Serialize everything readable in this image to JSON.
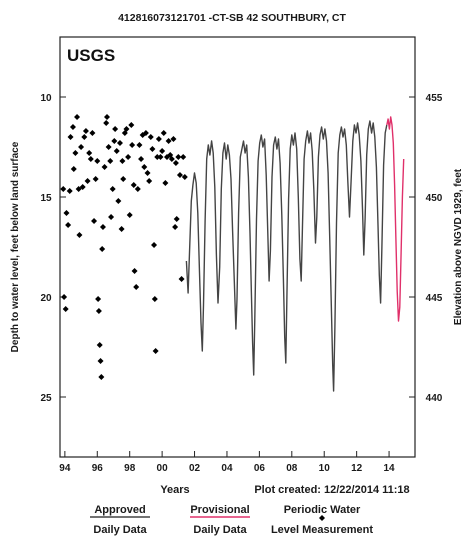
{
  "chart_data": {
    "type": "line",
    "title": "412816073121701 -CT-SB 42 SOUTHBURY, CT",
    "agency_label": "USGS",
    "xlabel": "Years",
    "ylabel_left": "Depth to water level, feet below land surface",
    "ylabel_right": "Elevation above NGVD 1929, feet",
    "x_ticks": [
      "94",
      "96",
      "98",
      "00",
      "02",
      "04",
      "06",
      "08",
      "10",
      "12",
      "14"
    ],
    "x_range": [
      1993.7,
      2015.6
    ],
    "ylim_left": [
      28,
      7
    ],
    "y_ticks_left": [
      10,
      15,
      20,
      25
    ],
    "y_ticks_right": [
      455,
      450,
      445,
      440
    ],
    "right_axis_offset": 465,
    "grid": false,
    "legend_position": "bottom",
    "plot_note": "Plot created: 12/22/2014 11:18",
    "legend": [
      {
        "line1": "Approved",
        "line2": "Daily Data",
        "color": "#444444",
        "style": "line"
      },
      {
        "line1": "Provisional",
        "line2": "Daily Data",
        "color": "#e0306a",
        "style": "line"
      },
      {
        "line1": "Periodic Water",
        "line2": "Level Measurement",
        "color": "#000000",
        "style": "point"
      }
    ],
    "colors": {
      "approved": "#444444",
      "provisional": "#e0306a",
      "periodic": "#000000"
    },
    "periodic_measurements": [
      {
        "x": 1993.9,
        "y": 14.6
      },
      {
        "x": 1993.95,
        "y": 20.0
      },
      {
        "x": 1994.05,
        "y": 20.6
      },
      {
        "x": 1994.1,
        "y": 15.8
      },
      {
        "x": 1994.2,
        "y": 16.4
      },
      {
        "x": 1994.3,
        "y": 14.7
      },
      {
        "x": 1994.35,
        "y": 12.0
      },
      {
        "x": 1994.5,
        "y": 11.5
      },
      {
        "x": 1994.55,
        "y": 13.6
      },
      {
        "x": 1994.65,
        "y": 12.8
      },
      {
        "x": 1994.75,
        "y": 11.0
      },
      {
        "x": 1994.85,
        "y": 14.6
      },
      {
        "x": 1994.9,
        "y": 16.9
      },
      {
        "x": 1995.0,
        "y": 12.5
      },
      {
        "x": 1995.1,
        "y": 14.5
      },
      {
        "x": 1995.2,
        "y": 12.0
      },
      {
        "x": 1995.3,
        "y": 11.7
      },
      {
        "x": 1995.4,
        "y": 14.2
      },
      {
        "x": 1995.5,
        "y": 12.8
      },
      {
        "x": 1995.6,
        "y": 13.1
      },
      {
        "x": 1995.7,
        "y": 11.8
      },
      {
        "x": 1995.8,
        "y": 16.2
      },
      {
        "x": 1995.9,
        "y": 14.1
      },
      {
        "x": 1996.0,
        "y": 13.2
      },
      {
        "x": 1996.05,
        "y": 20.1
      },
      {
        "x": 1996.1,
        "y": 20.7
      },
      {
        "x": 1996.15,
        "y": 22.4
      },
      {
        "x": 1996.2,
        "y": 23.2
      },
      {
        "x": 1996.25,
        "y": 24.0
      },
      {
        "x": 1996.3,
        "y": 17.6
      },
      {
        "x": 1996.35,
        "y": 16.5
      },
      {
        "x": 1996.45,
        "y": 13.5
      },
      {
        "x": 1996.55,
        "y": 11.3
      },
      {
        "x": 1996.6,
        "y": 11.0
      },
      {
        "x": 1996.7,
        "y": 12.5
      },
      {
        "x": 1996.8,
        "y": 13.2
      },
      {
        "x": 1996.85,
        "y": 16.0
      },
      {
        "x": 1996.95,
        "y": 14.6
      },
      {
        "x": 1997.05,
        "y": 12.2
      },
      {
        "x": 1997.1,
        "y": 11.6
      },
      {
        "x": 1997.2,
        "y": 12.7
      },
      {
        "x": 1997.3,
        "y": 15.2
      },
      {
        "x": 1997.4,
        "y": 12.3
      },
      {
        "x": 1997.5,
        "y": 16.6
      },
      {
        "x": 1997.55,
        "y": 13.2
      },
      {
        "x": 1997.6,
        "y": 14.1
      },
      {
        "x": 1997.7,
        "y": 11.8
      },
      {
        "x": 1997.8,
        "y": 11.6
      },
      {
        "x": 1997.9,
        "y": 13.0
      },
      {
        "x": 1998.0,
        "y": 15.9
      },
      {
        "x": 1998.1,
        "y": 11.4
      },
      {
        "x": 1998.15,
        "y": 12.4
      },
      {
        "x": 1998.25,
        "y": 14.4
      },
      {
        "x": 1998.3,
        "y": 18.7
      },
      {
        "x": 1998.4,
        "y": 19.5
      },
      {
        "x": 1998.5,
        "y": 14.6
      },
      {
        "x": 1998.6,
        "y": 12.4
      },
      {
        "x": 1998.7,
        "y": 13.1
      },
      {
        "x": 1998.8,
        "y": 11.9
      },
      {
        "x": 1998.9,
        "y": 13.5
      },
      {
        "x": 1999.0,
        "y": 11.8
      },
      {
        "x": 1999.1,
        "y": 13.8
      },
      {
        "x": 1999.2,
        "y": 14.2
      },
      {
        "x": 1999.3,
        "y": 12.0
      },
      {
        "x": 1999.4,
        "y": 12.6
      },
      {
        "x": 1999.5,
        "y": 17.4
      },
      {
        "x": 1999.55,
        "y": 20.1
      },
      {
        "x": 1999.6,
        "y": 22.7
      },
      {
        "x": 1999.7,
        "y": 13.0
      },
      {
        "x": 1999.8,
        "y": 12.1
      },
      {
        "x": 1999.9,
        "y": 13.0
      },
      {
        "x": 2000.0,
        "y": 12.7
      },
      {
        "x": 2000.1,
        "y": 11.8
      },
      {
        "x": 2000.2,
        "y": 14.3
      },
      {
        "x": 2000.3,
        "y": 13.0
      },
      {
        "x": 2000.4,
        "y": 12.2
      },
      {
        "x": 2000.5,
        "y": 12.9
      },
      {
        "x": 2000.6,
        "y": 13.1
      },
      {
        "x": 2000.7,
        "y": 12.1
      },
      {
        "x": 2000.8,
        "y": 16.5
      },
      {
        "x": 2000.85,
        "y": 13.3
      },
      {
        "x": 2000.9,
        "y": 16.1
      },
      {
        "x": 2001.0,
        "y": 13.0
      },
      {
        "x": 2001.1,
        "y": 13.9
      },
      {
        "x": 2001.2,
        "y": 19.1
      },
      {
        "x": 2001.3,
        "y": 13.0
      },
      {
        "x": 2001.4,
        "y": 14.0
      }
    ],
    "approved_daily_data": [
      {
        "x": 2001.5,
        "y": 18.2
      },
      {
        "x": 2001.6,
        "y": 19.8
      },
      {
        "x": 2001.7,
        "y": 17.5
      },
      {
        "x": 2001.8,
        "y": 15.2
      },
      {
        "x": 2001.9,
        "y": 14.4
      },
      {
        "x": 2002.0,
        "y": 13.8
      },
      {
        "x": 2002.1,
        "y": 14.3
      },
      {
        "x": 2002.2,
        "y": 15.8
      },
      {
        "x": 2002.3,
        "y": 18.6
      },
      {
        "x": 2002.4,
        "y": 21.3
      },
      {
        "x": 2002.48,
        "y": 22.7
      },
      {
        "x": 2002.55,
        "y": 20.4
      },
      {
        "x": 2002.65,
        "y": 16.2
      },
      {
        "x": 2002.75,
        "y": 13.1
      },
      {
        "x": 2002.85,
        "y": 12.4
      },
      {
        "x": 2002.95,
        "y": 12.9
      },
      {
        "x": 2003.05,
        "y": 12.2
      },
      {
        "x": 2003.15,
        "y": 12.8
      },
      {
        "x": 2003.25,
        "y": 14.5
      },
      {
        "x": 2003.35,
        "y": 17.9
      },
      {
        "x": 2003.45,
        "y": 20.3
      },
      {
        "x": 2003.55,
        "y": 18.5
      },
      {
        "x": 2003.65,
        "y": 14.6
      },
      {
        "x": 2003.75,
        "y": 12.8
      },
      {
        "x": 2003.85,
        "y": 12.3
      },
      {
        "x": 2003.95,
        "y": 13.1
      },
      {
        "x": 2004.05,
        "y": 12.4
      },
      {
        "x": 2004.15,
        "y": 12.9
      },
      {
        "x": 2004.25,
        "y": 14.1
      },
      {
        "x": 2004.35,
        "y": 16.7
      },
      {
        "x": 2004.45,
        "y": 19.2
      },
      {
        "x": 2004.55,
        "y": 21.6
      },
      {
        "x": 2004.62,
        "y": 20.1
      },
      {
        "x": 2004.72,
        "y": 15.8
      },
      {
        "x": 2004.82,
        "y": 13.0
      },
      {
        "x": 2004.92,
        "y": 12.6
      },
      {
        "x": 2005.02,
        "y": 12.2
      },
      {
        "x": 2005.12,
        "y": 12.8
      },
      {
        "x": 2005.22,
        "y": 12.4
      },
      {
        "x": 2005.32,
        "y": 14.0
      },
      {
        "x": 2005.42,
        "y": 16.8
      },
      {
        "x": 2005.5,
        "y": 19.6
      },
      {
        "x": 2005.58,
        "y": 22.3
      },
      {
        "x": 2005.65,
        "y": 23.9
      },
      {
        "x": 2005.72,
        "y": 21.1
      },
      {
        "x": 2005.82,
        "y": 16.1
      },
      {
        "x": 2005.92,
        "y": 13.2
      },
      {
        "x": 2006.02,
        "y": 12.3
      },
      {
        "x": 2006.12,
        "y": 11.9
      },
      {
        "x": 2006.22,
        "y": 12.5
      },
      {
        "x": 2006.32,
        "y": 12.1
      },
      {
        "x": 2006.42,
        "y": 13.9
      },
      {
        "x": 2006.52,
        "y": 16.8
      },
      {
        "x": 2006.6,
        "y": 19.2
      },
      {
        "x": 2006.68,
        "y": 17.7
      },
      {
        "x": 2006.78,
        "y": 14.0
      },
      {
        "x": 2006.88,
        "y": 12.4
      },
      {
        "x": 2006.98,
        "y": 12.0
      },
      {
        "x": 2007.08,
        "y": 12.6
      },
      {
        "x": 2007.18,
        "y": 12.1
      },
      {
        "x": 2007.28,
        "y": 13.3
      },
      {
        "x": 2007.38,
        "y": 15.9
      },
      {
        "x": 2007.48,
        "y": 19.1
      },
      {
        "x": 2007.56,
        "y": 22.0
      },
      {
        "x": 2007.63,
        "y": 23.3
      },
      {
        "x": 2007.7,
        "y": 20.0
      },
      {
        "x": 2007.8,
        "y": 15.1
      },
      {
        "x": 2007.9,
        "y": 12.6
      },
      {
        "x": 2008.0,
        "y": 11.9
      },
      {
        "x": 2008.1,
        "y": 12.4
      },
      {
        "x": 2008.2,
        "y": 11.8
      },
      {
        "x": 2008.3,
        "y": 12.6
      },
      {
        "x": 2008.4,
        "y": 15.0
      },
      {
        "x": 2008.5,
        "y": 18.1
      },
      {
        "x": 2008.58,
        "y": 19.2
      },
      {
        "x": 2008.66,
        "y": 16.4
      },
      {
        "x": 2008.76,
        "y": 13.1
      },
      {
        "x": 2008.86,
        "y": 12.2
      },
      {
        "x": 2008.96,
        "y": 11.7
      },
      {
        "x": 2009.06,
        "y": 12.3
      },
      {
        "x": 2009.16,
        "y": 11.8
      },
      {
        "x": 2009.26,
        "y": 12.7
      },
      {
        "x": 2009.36,
        "y": 14.6
      },
      {
        "x": 2009.46,
        "y": 17.3
      },
      {
        "x": 2009.54,
        "y": 16.0
      },
      {
        "x": 2009.64,
        "y": 13.0
      },
      {
        "x": 2009.74,
        "y": 11.9
      },
      {
        "x": 2009.84,
        "y": 11.5
      },
      {
        "x": 2009.94,
        "y": 12.1
      },
      {
        "x": 2010.04,
        "y": 11.6
      },
      {
        "x": 2010.14,
        "y": 12.2
      },
      {
        "x": 2010.24,
        "y": 13.8
      },
      {
        "x": 2010.34,
        "y": 17.0
      },
      {
        "x": 2010.44,
        "y": 20.6
      },
      {
        "x": 2010.52,
        "y": 23.4
      },
      {
        "x": 2010.58,
        "y": 24.7
      },
      {
        "x": 2010.66,
        "y": 21.5
      },
      {
        "x": 2010.76,
        "y": 16.3
      },
      {
        "x": 2010.86,
        "y": 12.8
      },
      {
        "x": 2010.96,
        "y": 11.9
      },
      {
        "x": 2011.06,
        "y": 11.5
      },
      {
        "x": 2011.16,
        "y": 12.0
      },
      {
        "x": 2011.26,
        "y": 11.6
      },
      {
        "x": 2011.36,
        "y": 12.4
      },
      {
        "x": 2011.46,
        "y": 14.3
      },
      {
        "x": 2011.56,
        "y": 16.0
      },
      {
        "x": 2011.66,
        "y": 14.2
      },
      {
        "x": 2011.76,
        "y": 12.2
      },
      {
        "x": 2011.86,
        "y": 11.4
      },
      {
        "x": 2011.96,
        "y": 11.8
      },
      {
        "x": 2012.06,
        "y": 11.3
      },
      {
        "x": 2012.16,
        "y": 11.9
      },
      {
        "x": 2012.26,
        "y": 13.2
      },
      {
        "x": 2012.36,
        "y": 15.6
      },
      {
        "x": 2012.44,
        "y": 17.9
      },
      {
        "x": 2012.52,
        "y": 16.1
      },
      {
        "x": 2012.62,
        "y": 12.9
      },
      {
        "x": 2012.72,
        "y": 11.6
      },
      {
        "x": 2012.82,
        "y": 11.2
      },
      {
        "x": 2012.92,
        "y": 11.8
      },
      {
        "x": 2013.02,
        "y": 11.3
      },
      {
        "x": 2013.12,
        "y": 12.0
      },
      {
        "x": 2013.22,
        "y": 13.5
      },
      {
        "x": 2013.32,
        "y": 16.4
      },
      {
        "x": 2013.4,
        "y": 18.9
      },
      {
        "x": 2013.48,
        "y": 20.3
      },
      {
        "x": 2013.56,
        "y": 17.5
      },
      {
        "x": 2013.66,
        "y": 13.4
      },
      {
        "x": 2013.76,
        "y": 11.8
      },
      {
        "x": 2013.86,
        "y": 11.4
      }
    ],
    "provisional_daily_data": [
      {
        "x": 2013.86,
        "y": 11.4
      },
      {
        "x": 2013.94,
        "y": 11.1
      },
      {
        "x": 2014.02,
        "y": 11.6
      },
      {
        "x": 2014.1,
        "y": 11.0
      },
      {
        "x": 2014.18,
        "y": 11.4
      },
      {
        "x": 2014.26,
        "y": 12.3
      },
      {
        "x": 2014.34,
        "y": 14.4
      },
      {
        "x": 2014.42,
        "y": 17.1
      },
      {
        "x": 2014.5,
        "y": 19.7
      },
      {
        "x": 2014.58,
        "y": 21.2
      },
      {
        "x": 2014.66,
        "y": 20.5
      },
      {
        "x": 2014.74,
        "y": 17.8
      },
      {
        "x": 2014.82,
        "y": 15.0
      },
      {
        "x": 2014.9,
        "y": 13.1
      }
    ]
  }
}
